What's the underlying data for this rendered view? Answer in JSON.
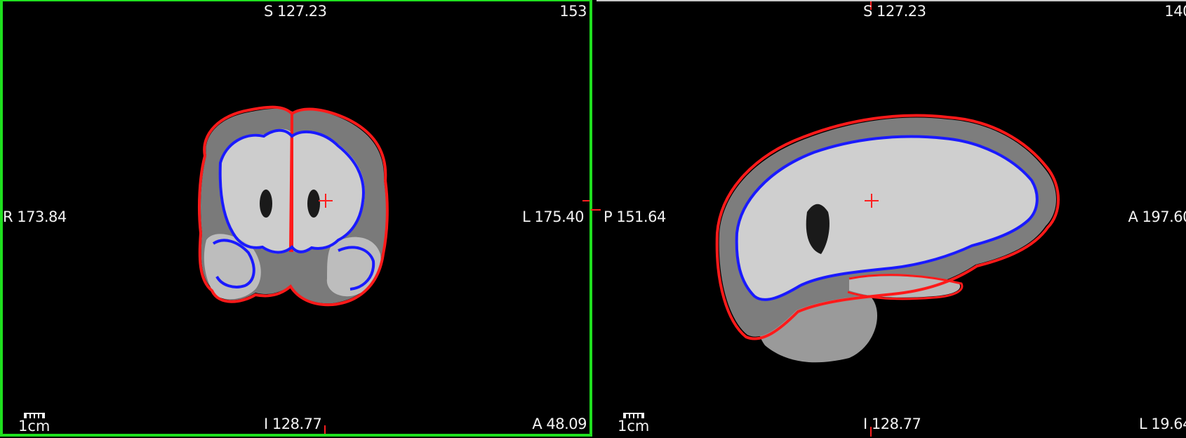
{
  "viewports": [
    {
      "view": "coronal",
      "top_label": "S 127.23",
      "bottom_label": "I 128.77",
      "left_label": "R 173.84",
      "right_label": "L 175.40",
      "corner_top_right": "153",
      "corner_bottom_right": "A 48.09",
      "scale_label": "1cm",
      "active": true
    },
    {
      "view": "sagittal",
      "top_label": "S 127.23",
      "bottom_label": "I 128.77",
      "left_label": "P 151.64",
      "right_label": "A 197.60",
      "corner_top_right": "140",
      "corner_bottom_right": "L 19.64",
      "scale_label": "1cm",
      "active": false
    }
  ],
  "colors": {
    "active_border": "#1fe01f",
    "cursor": "#ff2020",
    "pial_surface": "#ff1a1a",
    "white_surface": "#1a1aff",
    "tissue": "#cfcfcf"
  }
}
